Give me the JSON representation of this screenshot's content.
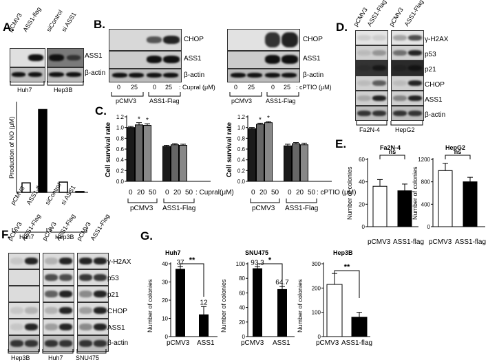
{
  "panels": {
    "A": {
      "letter": "A.",
      "lanes": [
        "pCMV3",
        "ASS1-flag",
        "siControl",
        "si ASS1"
      ],
      "rows": [
        "ASS1",
        "β-actin"
      ],
      "cells": [
        "Huh7",
        "Hep3B"
      ],
      "chart_ylabel": "Production of NO (μM)",
      "bar_categories": [
        "pCMV3",
        "ASS1-flag",
        "siControl",
        "si ASS1"
      ]
    },
    "B": {
      "letter": "B.",
      "rows": [
        "CHOP",
        "ASS1",
        "β-actin"
      ],
      "left_doses": [
        "0",
        "25",
        "0",
        "25"
      ],
      "left_treat": ": Cupral (μM)",
      "right_doses": [
        "0",
        "25",
        "0",
        "25"
      ],
      "right_treat": ": cPTIO (μM)",
      "groups": [
        "pCMV3",
        "ASS1-Flag"
      ]
    },
    "C": {
      "letter": "C.",
      "ylabel": "Cell survival rate",
      "yticks": [
        "0.0",
        "0.2",
        "0.4",
        "0.6",
        "0.8",
        "1.0",
        "1.2"
      ],
      "doses": [
        "0",
        "20",
        "50",
        "0",
        "20",
        "50"
      ],
      "left_treat": ": Cupral(μM)",
      "right_treat": ": cPTIO (μM)",
      "groups": [
        "pCMV3",
        "ASS1-Flag"
      ],
      "star": "*"
    },
    "D": {
      "letter": "D.",
      "lanes": [
        "pCMV3",
        "ASS1-Flag",
        "pCMV3",
        "ASS1-Flag"
      ],
      "rows": [
        "γ-H2AX",
        "p53",
        "p21",
        "CHOP",
        "ASS1",
        "β-actin"
      ],
      "cells": [
        "Fa2N-4",
        "HepG2"
      ]
    },
    "E": {
      "letter": "E.",
      "left_title": "Fa2N-4",
      "right_title": "HepG2",
      "ylabel": "Number of colonies",
      "left_yticks": [
        "0",
        "20",
        "40",
        "60"
      ],
      "right_yticks": [
        "0",
        "400",
        "800",
        "1200"
      ],
      "categories": [
        "pCMV3",
        "ASS1-flag"
      ],
      "ns": "ns"
    },
    "F": {
      "letter": "F.",
      "lanes": [
        "pCMV3",
        "ASS1-Flag",
        "pCMV3",
        "ASS1-Flag",
        "pCMV3",
        "ASS1-Flag"
      ],
      "rows": [
        "γ-H2AX",
        "p53",
        "p21",
        "CHOP",
        "ASS1",
        "β-actin"
      ],
      "cells": [
        "Hep3B",
        "Huh7",
        "SNU475"
      ]
    },
    "G": {
      "letter": "G.",
      "ylabel": "Number of colonies",
      "huh7": {
        "title": "Huh7",
        "yticks": [
          "0",
          "10",
          "20",
          "30",
          "40"
        ],
        "categories": [
          "pCMV3",
          "ASS1"
        ],
        "labels": [
          "37",
          "12"
        ],
        "sig": "**"
      },
      "snu": {
        "title": "SNU475",
        "yticks": [
          "0",
          "20",
          "40",
          "60",
          "80",
          "100"
        ],
        "categories": [
          "pCMV3",
          "ASS1"
        ],
        "labels": [
          "93.3",
          "64.7"
        ],
        "sig": "*"
      },
      "hep3b": {
        "title": "Hep3B",
        "yticks": [
          "0",
          "100",
          "200",
          "300"
        ],
        "categories": [
          "pCMV3",
          "ASS1-flag"
        ],
        "sig": "**"
      }
    }
  },
  "chart_data": [
    {
      "id": "A-NO",
      "type": "bar",
      "categories": [
        "pCMV3",
        "ASS1-flag",
        "siControl",
        "si ASS1"
      ],
      "values": [
        1.2,
        10.5,
        1.3,
        0.1
      ],
      "colors": [
        "#ffffff",
        "#000000",
        "#ffffff",
        "#000000"
      ],
      "ylabel": "Production of NO (μM)"
    },
    {
      "id": "C-left",
      "type": "bar",
      "ylabel": "Cell survival rate",
      "ylim": [
        0,
        1.2
      ],
      "categories": [
        "0",
        "20",
        "50",
        "0",
        "20",
        "50"
      ],
      "groups": [
        "pCMV3",
        "ASS1-Flag"
      ],
      "values": [
        1.0,
        1.05,
        1.04,
        0.65,
        0.68,
        0.67
      ],
      "errors": [
        0.02,
        0.04,
        0.03,
        0.02,
        0.02,
        0.02
      ],
      "stars": [
        false,
        true,
        true,
        false,
        false,
        false
      ]
    },
    {
      "id": "C-right",
      "type": "bar",
      "ylabel": "Cell survival rate",
      "ylim": [
        0,
        1.2
      ],
      "categories": [
        "0",
        "20",
        "50",
        "0",
        "20",
        "50"
      ],
      "groups": [
        "pCMV3",
        "ASS1-Flag"
      ],
      "values": [
        0.98,
        1.06,
        1.09,
        0.66,
        0.7,
        0.68
      ],
      "errors": [
        0.02,
        0.02,
        0.02,
        0.03,
        0.02,
        0.03
      ],
      "stars": [
        false,
        true,
        true,
        false,
        false,
        false
      ]
    },
    {
      "id": "E-Fa2N4",
      "type": "bar",
      "title": "Fa2N-4",
      "ylabel": "Number of colonies",
      "ylim": [
        0,
        60
      ],
      "categories": [
        "pCMV3",
        "ASS1-flag"
      ],
      "values": [
        36,
        32
      ],
      "errors": [
        6,
        6
      ],
      "colors": [
        "#ffffff",
        "#000000"
      ]
    },
    {
      "id": "E-HepG2",
      "type": "bar",
      "title": "HepG2",
      "ylim": [
        0,
        1200
      ],
      "categories": [
        "pCMV3",
        "ASS1-flag"
      ],
      "values": [
        1000,
        800
      ],
      "errors": [
        130,
        80
      ],
      "colors": [
        "#ffffff",
        "#000000"
      ]
    },
    {
      "id": "G-Huh7",
      "type": "bar",
      "title": "Huh7",
      "ylabel": "Number of colonies",
      "ylim": [
        0,
        40
      ],
      "categories": [
        "pCMV3",
        "ASS1"
      ],
      "values": [
        37,
        12
      ],
      "errors": [
        1.5,
        4.5
      ],
      "colors": [
        "#000000",
        "#000000"
      ]
    },
    {
      "id": "G-SNU475",
      "type": "bar",
      "title": "SNU475",
      "ylabel": "Number of colonies",
      "ylim": [
        0,
        100
      ],
      "categories": [
        "pCMV3",
        "ASS1"
      ],
      "values": [
        93.3,
        64.7
      ],
      "errors": [
        2.5,
        4
      ],
      "colors": [
        "#000000",
        "#000000"
      ]
    },
    {
      "id": "G-Hep3B",
      "type": "bar",
      "title": "Hep3B",
      "ylabel": "Number of colonies",
      "ylim": [
        0,
        300
      ],
      "categories": [
        "pCMV3",
        "ASS1-flag"
      ],
      "values": [
        215,
        80
      ],
      "errors": [
        45,
        20
      ],
      "colors": [
        "#ffffff",
        "#000000"
      ]
    }
  ]
}
